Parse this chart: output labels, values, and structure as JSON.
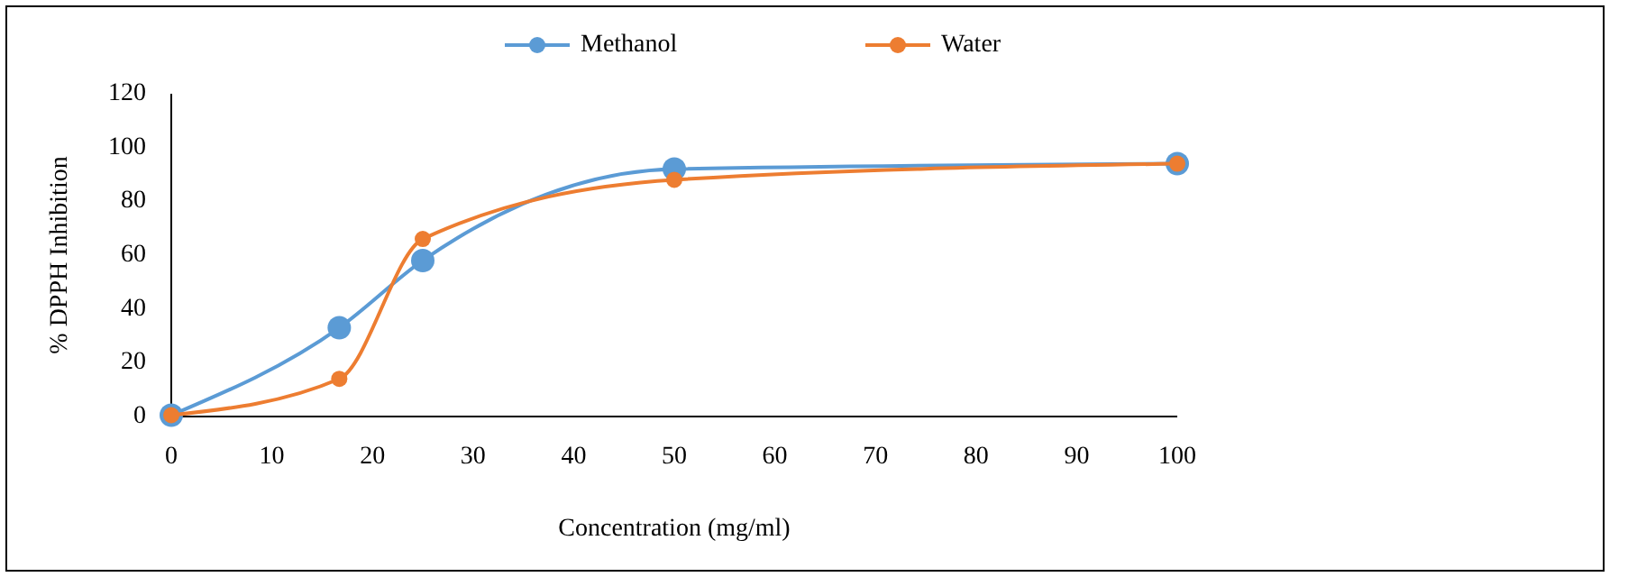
{
  "chart_data": {
    "type": "line",
    "xlabel": "Concentration (mg/ml)",
    "ylabel": "% DPPH Inhibition",
    "xlim": [
      0,
      100
    ],
    "xticks": [
      0,
      10,
      20,
      30,
      40,
      50,
      60,
      70,
      80,
      90,
      100
    ],
    "ylim": [
      0,
      120
    ],
    "yticks": [
      0,
      20,
      40,
      60,
      80,
      100,
      120
    ],
    "grid": false,
    "legend": "top",
    "marker": "circle",
    "line_style": "solid",
    "series": [
      {
        "name": "Methanol",
        "color": "#5b9bd5",
        "x": [
          0,
          16.7,
          25,
          50,
          100
        ],
        "values": [
          0.5,
          33,
          58,
          92,
          94
        ]
      },
      {
        "name": "Water",
        "color": "#ed7d31",
        "x": [
          0,
          16.7,
          25,
          50,
          100
        ],
        "values": [
          0.5,
          14,
          66,
          88,
          94
        ]
      }
    ]
  }
}
